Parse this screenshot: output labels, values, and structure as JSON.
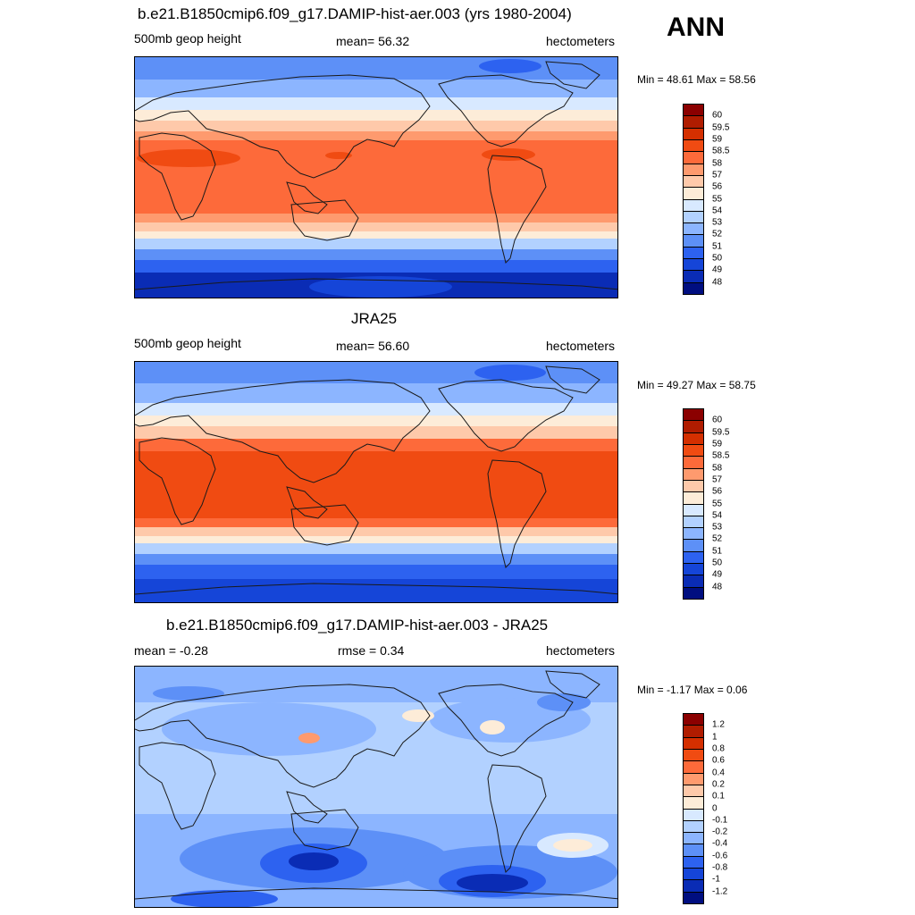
{
  "season": "ANN",
  "land_color": "#1a1a1a",
  "panels": [
    {
      "id": "model",
      "title": "b.e21.B1850cmip6.f09_g17.DAMIP-hist-aer.003 (yrs 1980-2004)",
      "left": "500mb geop height",
      "center": "mean=  56.32",
      "right": "hectometers",
      "minmax": "Min =  48.61 Max =  58.56",
      "colorbar": {
        "colors": [
          "#8b0000",
          "#b01c00",
          "#d42f00",
          "#f04b12",
          "#fd6a3a",
          "#fe9a6e",
          "#fec9aa",
          "#fdecd8",
          "#d8e9ff",
          "#b2d1ff",
          "#8cb5ff",
          "#5d90f7",
          "#2d62f0",
          "#1545d8",
          "#0a2cb5",
          "#000e80"
        ],
        "labels": [
          "60",
          "59.5",
          "59",
          "58.5",
          "58",
          "57",
          "56",
          "55",
          "54",
          "53",
          "52",
          "51",
          "50",
          "49",
          "48"
        ]
      }
    },
    {
      "id": "obs",
      "title": "JRA25",
      "left": "500mb geop height",
      "center": "mean=  56.60",
      "right": "hectometers",
      "minmax": "Min =  49.27 Max =  58.75",
      "colorbar": {
        "colors": [
          "#8b0000",
          "#b01c00",
          "#d42f00",
          "#f04b12",
          "#fd6a3a",
          "#fe9a6e",
          "#fec9aa",
          "#fdecd8",
          "#d8e9ff",
          "#b2d1ff",
          "#8cb5ff",
          "#5d90f7",
          "#2d62f0",
          "#1545d8",
          "#0a2cb5",
          "#000e80"
        ],
        "labels": [
          "60",
          "59.5",
          "59",
          "58.5",
          "58",
          "57",
          "56",
          "55",
          "54",
          "53",
          "52",
          "51",
          "50",
          "49",
          "48"
        ]
      }
    },
    {
      "id": "diff",
      "title": "b.e21.B1850cmip6.f09_g17.DAMIP-hist-aer.003 - JRA25",
      "left": "mean =  -0.28",
      "center": "rmse =   0.34",
      "right": "hectometers",
      "minmax": "Min =  -1.17 Max =   0.06",
      "colorbar": {
        "colors": [
          "#8b0000",
          "#b01c00",
          "#d42f00",
          "#f04b12",
          "#fd6a3a",
          "#fe9a6e",
          "#fec9aa",
          "#fdecd8",
          "#d8e9ff",
          "#b2d1ff",
          "#8cb5ff",
          "#5d90f7",
          "#2d62f0",
          "#1545d8",
          "#0a2cb5",
          "#000e80"
        ],
        "labels": [
          "1.2",
          "1",
          "0.8",
          "0.6",
          "0.4",
          "0.2",
          "0.1",
          "0",
          "-0.1",
          "-0.2",
          "-0.4",
          "-0.6",
          "-0.8",
          "-1",
          "-1.2"
        ]
      }
    }
  ]
}
